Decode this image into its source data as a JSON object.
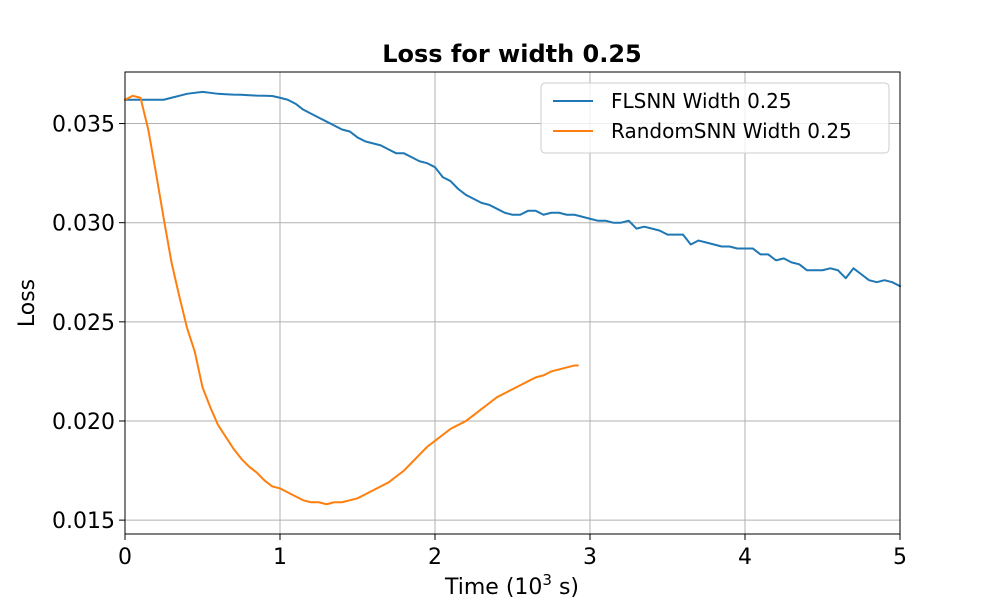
{
  "chart_data": {
    "type": "line",
    "title": "Loss for width 0.25",
    "xlabel_prefix": "Time (10",
    "xlabel_exp": "3",
    "xlabel_suffix": " s)",
    "ylabel": "Loss",
    "xlim": [
      0,
      5
    ],
    "ylim": [
      0.0143,
      0.0376
    ],
    "grid": true,
    "legend_position": "top-right",
    "x_ticks": [
      0,
      1,
      2,
      3,
      4,
      5
    ],
    "x_tick_labels": [
      "0",
      "1",
      "2",
      "3",
      "4",
      "5"
    ],
    "y_ticks": [
      0.015,
      0.02,
      0.025,
      0.03,
      0.035
    ],
    "y_tick_labels": [
      "0.015",
      "0.020",
      "0.025",
      "0.030",
      "0.035"
    ],
    "series": [
      {
        "name": "FLSNN Width 0.25",
        "color": "#1f77b4",
        "x": [
          0,
          0.05,
          0.1,
          0.15,
          0.2,
          0.25,
          0.3,
          0.35,
          0.4,
          0.45,
          0.5,
          0.55,
          0.6,
          0.65,
          0.7,
          0.75,
          0.8,
          0.85,
          0.9,
          0.95,
          1.0,
          1.05,
          1.1,
          1.15,
          1.2,
          1.25,
          1.3,
          1.35,
          1.4,
          1.45,
          1.5,
          1.55,
          1.6,
          1.65,
          1.7,
          1.75,
          1.8,
          1.85,
          1.9,
          1.95,
          2.0,
          2.05,
          2.1,
          2.15,
          2.2,
          2.25,
          2.3,
          2.35,
          2.4,
          2.45,
          2.5,
          2.55,
          2.6,
          2.65,
          2.7,
          2.75,
          2.8,
          2.85,
          2.9,
          2.95,
          3.0,
          3.05,
          3.1,
          3.15,
          3.2,
          3.25,
          3.3,
          3.35,
          3.4,
          3.45,
          3.5,
          3.55,
          3.6,
          3.65,
          3.7,
          3.75,
          3.8,
          3.85,
          3.9,
          3.95,
          4.0,
          4.05,
          4.1,
          4.15,
          4.2,
          4.25,
          4.3,
          4.35,
          4.4,
          4.45,
          4.5,
          4.55,
          4.6,
          4.65,
          4.7,
          4.75,
          4.8,
          4.85,
          4.9,
          4.95,
          5.0
        ],
        "y": [
          0.0362,
          0.0362,
          0.0362,
          0.0362,
          0.0362,
          0.0362,
          0.0363,
          0.0364,
          0.0365,
          0.03655,
          0.0366,
          0.03655,
          0.0365,
          0.03648,
          0.03646,
          0.03645,
          0.03643,
          0.03641,
          0.0364,
          0.03639,
          0.0363,
          0.0362,
          0.036,
          0.0357,
          0.0355,
          0.0353,
          0.0351,
          0.0349,
          0.0347,
          0.0346,
          0.0343,
          0.0341,
          0.034,
          0.0339,
          0.0337,
          0.0335,
          0.0335,
          0.0333,
          0.0331,
          0.033,
          0.0328,
          0.0323,
          0.0321,
          0.0317,
          0.0314,
          0.0312,
          0.031,
          0.0309,
          0.0307,
          0.0305,
          0.0304,
          0.0304,
          0.0306,
          0.0306,
          0.0304,
          0.0305,
          0.0305,
          0.0304,
          0.0304,
          0.0303,
          0.0302,
          0.0301,
          0.0301,
          0.03,
          0.03,
          0.0301,
          0.0297,
          0.0298,
          0.0297,
          0.0296,
          0.0294,
          0.0294,
          0.0294,
          0.0289,
          0.0291,
          0.029,
          0.0289,
          0.0288,
          0.0288,
          0.0287,
          0.0287,
          0.0287,
          0.0284,
          0.0284,
          0.0281,
          0.0282,
          0.028,
          0.0279,
          0.0276,
          0.0276,
          0.0276,
          0.0277,
          0.0276,
          0.0272,
          0.0277,
          0.0274,
          0.0271,
          0.027,
          0.0271,
          0.027,
          0.0268
        ]
      },
      {
        "name": "RandomSNN Width 0.25",
        "color": "#ff7f0e",
        "x": [
          0,
          0.05,
          0.1,
          0.15,
          0.2,
          0.25,
          0.3,
          0.35,
          0.4,
          0.45,
          0.5,
          0.55,
          0.6,
          0.65,
          0.7,
          0.75,
          0.8,
          0.85,
          0.9,
          0.95,
          1.0,
          1.05,
          1.1,
          1.15,
          1.2,
          1.25,
          1.3,
          1.35,
          1.4,
          1.45,
          1.5,
          1.55,
          1.6,
          1.65,
          1.7,
          1.75,
          1.8,
          1.85,
          1.9,
          1.95,
          2.0,
          2.05,
          2.1,
          2.15,
          2.2,
          2.25,
          2.3,
          2.35,
          2.4,
          2.45,
          2.5,
          2.55,
          2.6,
          2.65,
          2.7,
          2.75,
          2.8,
          2.85,
          2.9,
          2.92
        ],
        "y": [
          0.0362,
          0.0364,
          0.0363,
          0.0347,
          0.0325,
          0.0302,
          0.028,
          0.0263,
          0.0247,
          0.0235,
          0.0217,
          0.0207,
          0.0198,
          0.0192,
          0.0186,
          0.0181,
          0.0177,
          0.0174,
          0.017,
          0.0167,
          0.0166,
          0.0164,
          0.0162,
          0.016,
          0.0159,
          0.0159,
          0.0158,
          0.0159,
          0.0159,
          0.016,
          0.0161,
          0.0163,
          0.0165,
          0.0167,
          0.0169,
          0.0172,
          0.0175,
          0.0179,
          0.0183,
          0.0187,
          0.019,
          0.0193,
          0.0196,
          0.0198,
          0.02,
          0.0203,
          0.0206,
          0.0209,
          0.0212,
          0.0214,
          0.0216,
          0.0218,
          0.022,
          0.0222,
          0.0223,
          0.0225,
          0.0226,
          0.0227,
          0.0228,
          0.0228
        ]
      }
    ]
  }
}
